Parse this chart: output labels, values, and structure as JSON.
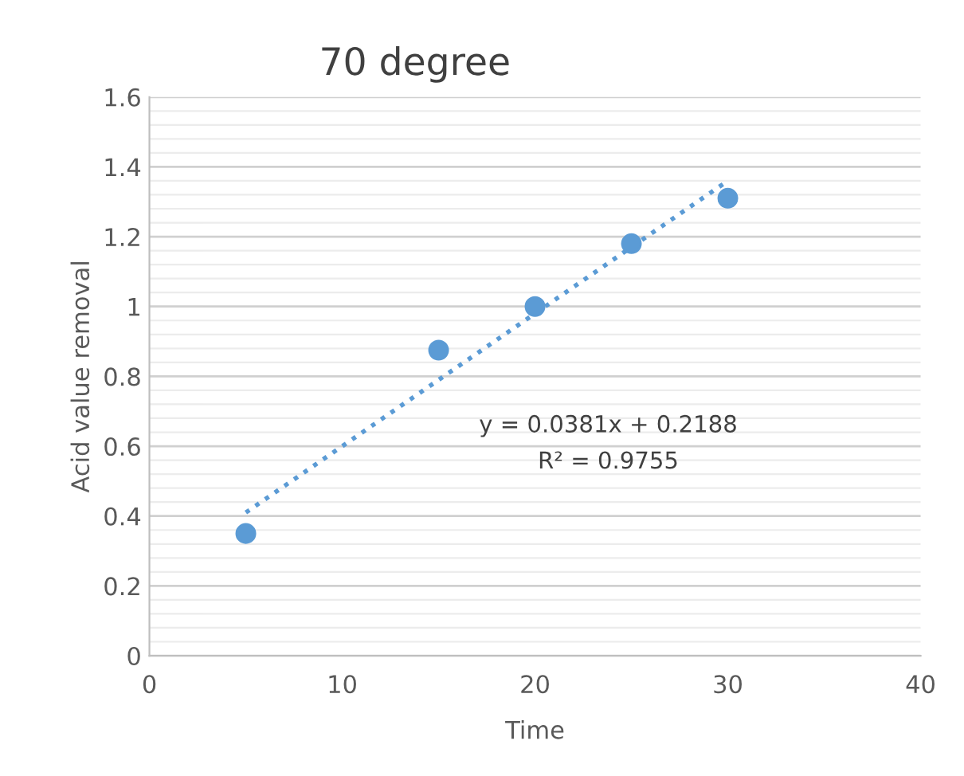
{
  "chart_data": {
    "type": "scatter",
    "title": "70 degree",
    "xlabel": "Time",
    "ylabel": "Acid value removal",
    "series": [
      {
        "color": "#5b9bd5",
        "marker": "circle",
        "x": [
          5,
          15,
          20,
          25,
          30
        ],
        "values": [
          0.35,
          0.875,
          1.0,
          1.18,
          1.31
        ]
      },
      {
        "type": "line",
        "color": "#5b9bd5",
        "line_style": "dotted",
        "marker": "none",
        "x": [
          5,
          30
        ],
        "values": [
          0.41,
          1.36
        ]
      }
    ],
    "xlim": [
      0,
      40
    ],
    "xticks": [
      0,
      10,
      20,
      30,
      40
    ],
    "ylim": [
      0,
      1.6
    ],
    "yticks": [
      0,
      0.2,
      0.4,
      0.6,
      0.8,
      1,
      1.2,
      1.4,
      1.6
    ],
    "grid": "y",
    "legend": false,
    "annotations": [
      "y = 0.0381x + 0.2188",
      "R² = 0.9755"
    ]
  }
}
